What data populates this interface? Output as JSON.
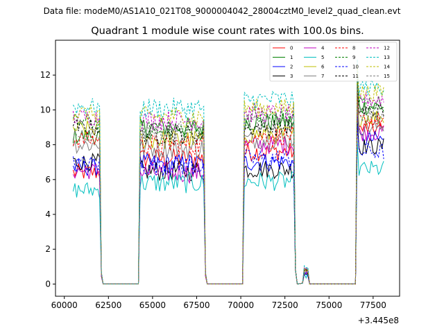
{
  "chart_data": {
    "type": "line",
    "suptitle": "Data file: modeM0/AS1A10_021T08_9000004042_28004cztM0_level2_quad_clean.evt",
    "title": "Quadrant 1 module wise count rates with 100.0s bins.",
    "x_offset_label": "+3.445e8",
    "xlabel": "",
    "ylabel": "",
    "xlim": [
      59500,
      79000
    ],
    "ylim": [
      -0.7,
      14.0
    ],
    "xticks": [
      60000,
      62500,
      65000,
      67500,
      70000,
      72500,
      75000,
      77500
    ],
    "xtick_labels": [
      "60000",
      "62500",
      "65000",
      "67500",
      "70000",
      "72500",
      "75000",
      "77500"
    ],
    "yticks": [
      0,
      2,
      4,
      6,
      8,
      10,
      12
    ],
    "ytick_labels": [
      "0",
      "2",
      "4",
      "6",
      "8",
      "10",
      "12"
    ],
    "segments": [
      {
        "start": 60500,
        "end": 62000
      },
      {
        "start": 64300,
        "end": 67900
      },
      {
        "start": 70200,
        "end": 73000
      },
      {
        "start": 73600,
        "end": 73800
      },
      {
        "start": 76600,
        "end": 78100
      }
    ],
    "zero_gaps": [
      {
        "start": 62100,
        "end": 64200
      },
      {
        "start": 68000,
        "end": 70100
      },
      {
        "start": 73100,
        "end": 73500
      },
      {
        "start": 73900,
        "end": 76500
      }
    ],
    "series": [
      {
        "name": "0",
        "color": "#ff0000",
        "dash": false,
        "levels": [
          6.4,
          7.2,
          7.6,
          0.7,
          8.9
        ]
      },
      {
        "name": "1",
        "color": "#008000",
        "dash": false,
        "levels": [
          8.5,
          9.0,
          9.3,
          0.8,
          10.2
        ]
      },
      {
        "name": "2",
        "color": "#0000ff",
        "dash": false,
        "levels": [
          6.7,
          6.9,
          7.0,
          0.6,
          8.3
        ]
      },
      {
        "name": "3",
        "color": "#000000",
        "dash": false,
        "levels": [
          7.0,
          6.5,
          6.6,
          0.6,
          7.9
        ]
      },
      {
        "name": "4",
        "color": "#bf00bf",
        "dash": false,
        "levels": [
          6.5,
          6.4,
          8.0,
          0.6,
          8.7
        ]
      },
      {
        "name": "5",
        "color": "#00bfbf",
        "dash": false,
        "levels": [
          5.4,
          5.8,
          5.9,
          0.5,
          6.6
        ]
      },
      {
        "name": "6",
        "color": "#bfbf00",
        "dash": false,
        "levels": [
          8.9,
          8.3,
          8.6,
          0.7,
          9.6
        ]
      },
      {
        "name": "7",
        "color": "#808080",
        "dash": false,
        "levels": [
          8.0,
          7.8,
          8.3,
          0.7,
          9.0
        ]
      },
      {
        "name": "8",
        "color": "#ff0000",
        "dash": true,
        "levels": [
          8.3,
          8.0,
          8.5,
          0.7,
          9.4
        ]
      },
      {
        "name": "9",
        "color": "#008000",
        "dash": true,
        "levels": [
          9.3,
          8.8,
          9.6,
          0.8,
          10.4
        ]
      },
      {
        "name": "10",
        "color": "#0000ff",
        "dash": true,
        "levels": [
          6.9,
          6.8,
          7.2,
          0.6,
          7.6
        ]
      },
      {
        "name": "11",
        "color": "#000000",
        "dash": true,
        "levels": [
          9.0,
          8.6,
          9.0,
          0.7,
          9.9
        ]
      },
      {
        "name": "12",
        "color": "#bf00bf",
        "dash": true,
        "levels": [
          9.6,
          9.4,
          9.8,
          0.8,
          10.6
        ]
      },
      {
        "name": "13",
        "color": "#00bfbf",
        "dash": true,
        "levels": [
          10.2,
          10.1,
          10.6,
          0.9,
          11.3
        ]
      },
      {
        "name": "14",
        "color": "#bfbf00",
        "dash": true,
        "levels": [
          9.8,
          9.6,
          10.1,
          0.9,
          11.0
        ]
      },
      {
        "name": "15",
        "color": "#808080",
        "dash": true,
        "levels": [
          8.6,
          8.8,
          9.2,
          0.8,
          9.8
        ]
      }
    ],
    "legend": {
      "loc": "upper right",
      "ncol": 4
    }
  }
}
